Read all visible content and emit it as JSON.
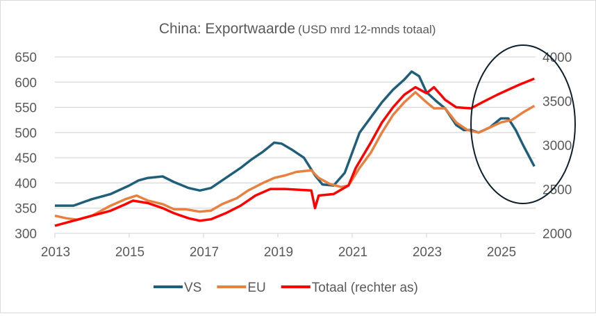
{
  "chart_data": {
    "type": "line",
    "title": "China: Exportwaarde",
    "subtitle": "(USD mrd 12-mnds totaal)",
    "x_ticks": [
      "2013",
      "2015",
      "2017",
      "2019",
      "2021",
      "2023",
      "2025"
    ],
    "x_range": [
      2013,
      2025.9
    ],
    "y_left": {
      "range": [
        300,
        650
      ],
      "ticks": [
        "300",
        "350",
        "400",
        "450",
        "500",
        "550",
        "600",
        "650"
      ]
    },
    "y_right": {
      "range": [
        2000,
        4000
      ],
      "ticks": [
        "2000",
        "2500",
        "3000",
        "3500",
        "4000"
      ]
    },
    "grid": "horizontal",
    "legend_position": "bottom",
    "series": [
      {
        "name": "VS",
        "axis": "left",
        "color": "#1f5f7a",
        "x": [
          2013.0,
          2013.5,
          2014.0,
          2014.5,
          2015.0,
          2015.25,
          2015.5,
          2015.9,
          2016.2,
          2016.6,
          2016.9,
          2017.2,
          2017.6,
          2018.0,
          2018.3,
          2018.6,
          2018.9,
          2019.1,
          2019.4,
          2019.7,
          2020.0,
          2020.2,
          2020.5,
          2020.8,
          2021.0,
          2021.2,
          2021.5,
          2021.8,
          2022.1,
          2022.4,
          2022.6,
          2022.8,
          2023.0,
          2023.3,
          2023.5,
          2023.8,
          2024.0,
          2024.2,
          2024.4,
          2024.7,
          2025.0,
          2025.2,
          2025.4,
          2025.6,
          2025.9
        ],
        "y": [
          355,
          355,
          368,
          378,
          395,
          405,
          410,
          413,
          402,
          390,
          385,
          390,
          410,
          430,
          447,
          462,
          480,
          478,
          465,
          450,
          415,
          397,
          395,
          420,
          460,
          500,
          530,
          560,
          585,
          605,
          621,
          612,
          580,
          560,
          548,
          515,
          505,
          505,
          500,
          510,
          528,
          528,
          505,
          475,
          433
        ]
      },
      {
        "name": "EU",
        "axis": "left",
        "color": "#e8803f",
        "x": [
          2013.0,
          2013.3,
          2013.6,
          2014.0,
          2014.5,
          2014.9,
          2015.2,
          2015.5,
          2015.9,
          2016.2,
          2016.5,
          2016.9,
          2017.2,
          2017.5,
          2017.9,
          2018.2,
          2018.6,
          2018.9,
          2019.2,
          2019.5,
          2019.9,
          2020.1,
          2020.4,
          2020.7,
          2020.9,
          2021.2,
          2021.5,
          2021.8,
          2022.1,
          2022.4,
          2022.7,
          2023.0,
          2023.2,
          2023.5,
          2023.8,
          2024.1,
          2024.4,
          2024.7,
          2025.0,
          2025.3,
          2025.6,
          2025.9
        ],
        "y": [
          335,
          330,
          327,
          335,
          355,
          368,
          375,
          365,
          358,
          348,
          348,
          343,
          345,
          358,
          370,
          385,
          400,
          410,
          415,
          422,
          425,
          410,
          398,
          392,
          395,
          430,
          460,
          500,
          535,
          560,
          580,
          560,
          548,
          548,
          520,
          505,
          500,
          510,
          520,
          525,
          540,
          553
        ]
      },
      {
        "name": "Totaal (rechter as)",
        "axis": "right",
        "color": "#ff0000",
        "x": [
          2013.0,
          2013.5,
          2014.0,
          2014.5,
          2014.9,
          2015.1,
          2015.5,
          2015.9,
          2016.2,
          2016.6,
          2016.9,
          2017.2,
          2017.6,
          2018.0,
          2018.4,
          2018.8,
          2019.2,
          2019.9,
          2020.0,
          2020.1,
          2020.5,
          2020.9,
          2021.1,
          2021.5,
          2021.8,
          2022.1,
          2022.4,
          2022.7,
          2023.0,
          2023.2,
          2023.5,
          2023.8,
          2024.2,
          2024.5,
          2024.9,
          2025.2,
          2025.5,
          2025.9
        ],
        "y": [
          2086,
          2143,
          2200,
          2257,
          2331,
          2371,
          2343,
          2286,
          2229,
          2171,
          2143,
          2160,
          2229,
          2314,
          2429,
          2503,
          2503,
          2486,
          2286,
          2429,
          2446,
          2543,
          2743,
          3029,
          3257,
          3429,
          3571,
          3657,
          3589,
          3657,
          3514,
          3429,
          3417,
          3486,
          3571,
          3629,
          3686,
          3754
        ]
      }
    ],
    "annotation": {
      "shape": "ellipse",
      "color": "#0d1f2d",
      "highlights": "2024-2025"
    }
  }
}
